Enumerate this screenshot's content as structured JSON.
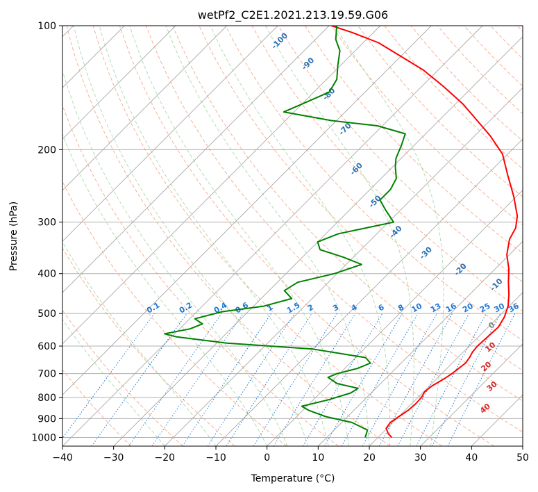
{
  "chart_data": {
    "type": "line",
    "subtype": "skew-t log-p diagram",
    "title": "wetPf2_C2E1.2021.213.19.59.G06",
    "xlabel": "Temperature (°C)",
    "ylabel": "Pressure (hPa)",
    "xlim": [
      -40,
      50
    ],
    "ylim": [
      1050,
      100
    ],
    "y_scale": "log",
    "grid": true,
    "x_ticks": [
      -40,
      -30,
      -20,
      -10,
      0,
      10,
      20,
      30,
      40,
      50
    ],
    "x_tick_labels": [
      "−40",
      "−30",
      "−20",
      "−10",
      "0",
      "10",
      "20",
      "30",
      "40",
      "50"
    ],
    "y_ticks": [
      1000,
      900,
      800,
      700,
      600,
      500,
      400,
      300,
      200,
      100
    ],
    "y_tick_labels": [
      "1000",
      "900",
      "800",
      "700",
      "600",
      "500",
      "400",
      "300",
      "200",
      "100"
    ],
    "series": [
      {
        "name": "temperature",
        "color": "#ff0000",
        "points": [
          [
            22.7,
            1000
          ],
          [
            21.3,
            980
          ],
          [
            19.8,
            950
          ],
          [
            19.5,
            920
          ],
          [
            20.0,
            890
          ],
          [
            20.6,
            860
          ],
          [
            20.8,
            830
          ],
          [
            20.7,
            800
          ],
          [
            20.2,
            775
          ],
          [
            20.5,
            750
          ],
          [
            21.5,
            720
          ],
          [
            22.0,
            700
          ],
          [
            22.3,
            680
          ],
          [
            22.6,
            660
          ],
          [
            22.3,
            640
          ],
          [
            21.8,
            620
          ],
          [
            21.6,
            600
          ],
          [
            21.8,
            570
          ],
          [
            22.0,
            540
          ],
          [
            21.2,
            510
          ],
          [
            19.8,
            480
          ],
          [
            17.7,
            450
          ],
          [
            15.2,
            420
          ],
          [
            12.7,
            390
          ],
          [
            9.5,
            360
          ],
          [
            7.0,
            330
          ],
          [
            6.0,
            310
          ],
          [
            4.0,
            290
          ],
          [
            -0.5,
            260
          ],
          [
            -6.0,
            230
          ],
          [
            -11.0,
            205
          ],
          [
            -17.0,
            185
          ],
          [
            -22.5,
            170
          ],
          [
            -28.5,
            155
          ],
          [
            -36.0,
            140
          ],
          [
            -43.0,
            128
          ],
          [
            -50.5,
            118
          ],
          [
            -57.0,
            110
          ],
          [
            -64.0,
            104
          ],
          [
            -69.5,
            100
          ]
        ]
      },
      {
        "name": "dewpoint",
        "color": "#008000",
        "points": [
          [
            17.5,
            1000
          ],
          [
            16.5,
            960
          ],
          [
            12.0,
            920
          ],
          [
            5.7,
            890
          ],
          [
            1.2,
            860
          ],
          [
            -1.0,
            840
          ],
          [
            3.0,
            810
          ],
          [
            6.0,
            780
          ],
          [
            6.5,
            760
          ],
          [
            1.5,
            740
          ],
          [
            -1.5,
            715
          ],
          [
            -0.5,
            700
          ],
          [
            2.5,
            680
          ],
          [
            4.0,
            660
          ],
          [
            2.0,
            640
          ],
          [
            -10.0,
            610
          ],
          [
            -28.0,
            590
          ],
          [
            -39.0,
            570
          ],
          [
            -42.0,
            560
          ],
          [
            -38.0,
            545
          ],
          [
            -36.5,
            530
          ],
          [
            -39.0,
            515
          ],
          [
            -35.0,
            495
          ],
          [
            -28.0,
            480
          ],
          [
            -24.0,
            460
          ],
          [
            -27.0,
            440
          ],
          [
            -26.0,
            420
          ],
          [
            -20.5,
            400
          ],
          [
            -17.0,
            380
          ],
          [
            -22.0,
            365
          ],
          [
            -28.0,
            350
          ],
          [
            -30.0,
            335
          ],
          [
            -27.5,
            320
          ],
          [
            -19.0,
            300
          ],
          [
            -23.0,
            280
          ],
          [
            -26.0,
            265
          ],
          [
            -26.0,
            250
          ],
          [
            -27.0,
            235
          ],
          [
            -29.5,
            220
          ],
          [
            -31.0,
            210
          ],
          [
            -32.5,
            195
          ],
          [
            -34.0,
            183
          ],
          [
            -41.0,
            175
          ],
          [
            -51.0,
            170
          ],
          [
            -62.0,
            162
          ],
          [
            -60.0,
            155
          ],
          [
            -57.0,
            145
          ],
          [
            -58.0,
            135
          ],
          [
            -60.5,
            125
          ],
          [
            -63.0,
            115
          ],
          [
            -66.0,
            108
          ],
          [
            -68.5,
            100
          ]
        ]
      }
    ],
    "overlays": {
      "isotherms": {
        "color": "#888888",
        "style": "solid"
      },
      "dry_adiabats": {
        "color": "#f4a582",
        "style": "dashed"
      },
      "moist_adiabats": {
        "color": "#8fc98f",
        "style": "dashed"
      },
      "mixing_ratio_lines": {
        "color": "#1f77d4",
        "style": "dotted"
      },
      "isobars": {
        "color": "#999999",
        "style": "solid"
      },
      "dry_adiabat_labels_theta": [
        "0",
        "10",
        "20",
        "30",
        "40"
      ],
      "moist_adiabat_labels": [
        "-100",
        "-90",
        "-80",
        "-70",
        "-60",
        "-50",
        "-40",
        "-30",
        "-20",
        "-10"
      ],
      "mixing_ratio_labels": [
        "0.1",
        "0.2",
        "0.4",
        "0.6",
        "1",
        "1.5",
        "2",
        "3",
        "4",
        "6",
        "8",
        "10",
        "13",
        "16",
        "20",
        "25",
        "30",
        "36"
      ]
    }
  }
}
